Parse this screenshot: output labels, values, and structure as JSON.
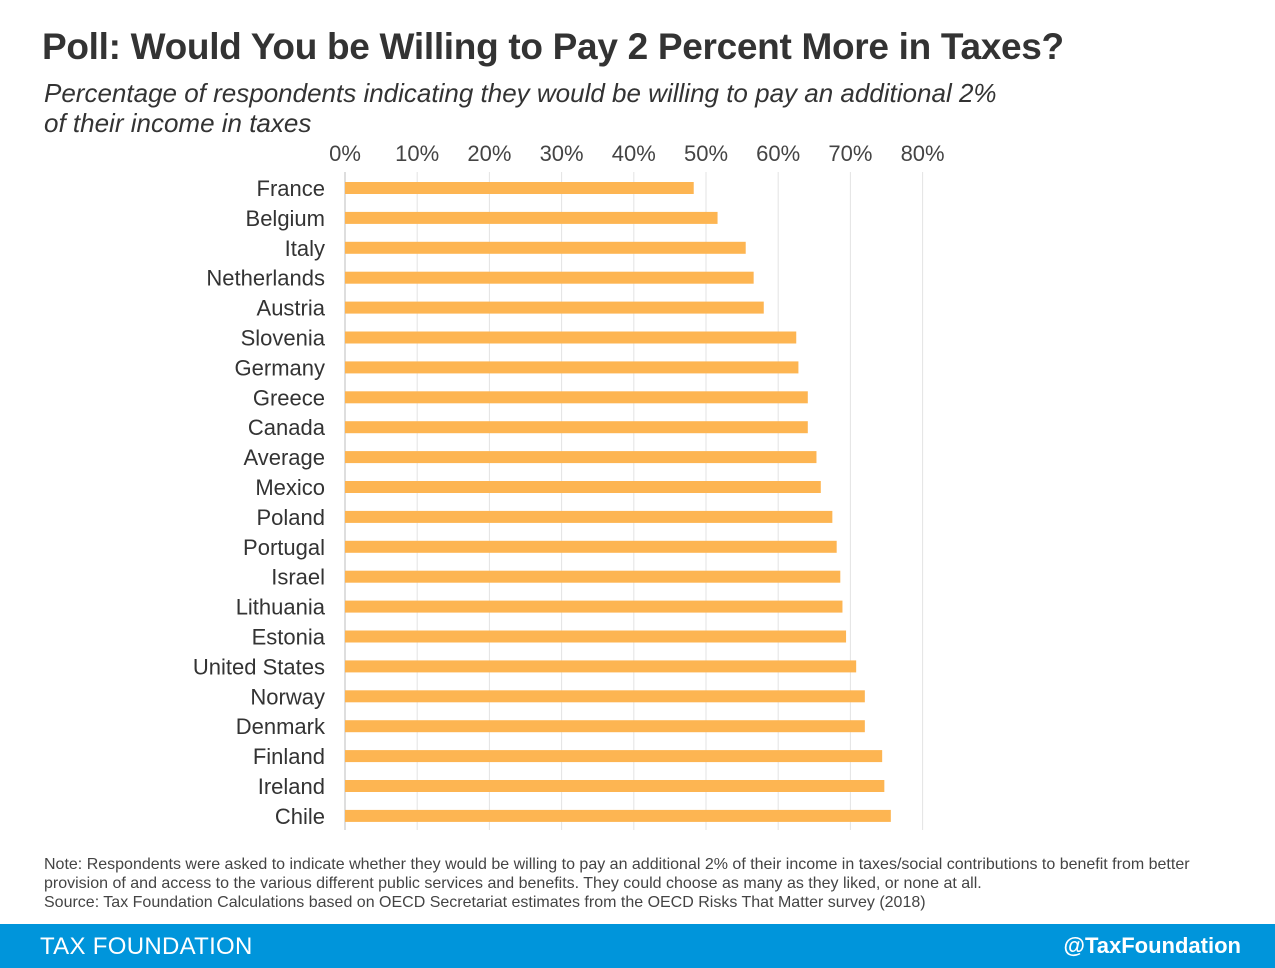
{
  "header": {
    "title": "Poll: Would You be Willing to Pay 2 Percent More in Taxes?",
    "subtitle": "Percentage of respondents indicating they would be willing to pay an additional 2% of their income in taxes"
  },
  "chart_data": {
    "type": "bar",
    "orientation": "horizontal",
    "title": "Poll: Would You be Willing to Pay 2 Percent More in Taxes?",
    "subtitle": "Percentage of respondents indicating they would be willing to pay an additional 2% of their income in taxes",
    "xlabel": "",
    "ylabel": "",
    "xlim": [
      0,
      80
    ],
    "x_ticks": [
      0,
      10,
      20,
      30,
      40,
      50,
      60,
      70,
      80
    ],
    "x_tick_labels": [
      "0%",
      "10%",
      "20%",
      "30%",
      "40%",
      "50%",
      "60%",
      "70%",
      "80%"
    ],
    "x_axis_position": "top",
    "grid": true,
    "legend": "none",
    "bar_color": "#fdb552",
    "categories": [
      "France",
      "Belgium",
      "Italy",
      "Netherlands",
      "Austria",
      "Slovenia",
      "Germany",
      "Greece",
      "Canada",
      "Average",
      "Mexico",
      "Poland",
      "Portugal",
      "Israel",
      "Lithuania",
      "Estonia",
      "United States",
      "Norway",
      "Denmark",
      "Finland",
      "Ireland",
      "Chile"
    ],
    "values": [
      48.3,
      51.6,
      55.5,
      56.6,
      58.0,
      62.5,
      62.8,
      64.1,
      64.1,
      65.3,
      65.9,
      67.5,
      68.1,
      68.6,
      68.9,
      69.4,
      70.8,
      72.0,
      72.0,
      74.4,
      74.7,
      75.6
    ]
  },
  "footer": {
    "note": "Note: Respondents were asked to indicate whether they would be willing to pay an additional 2% of their income in taxes/social contributions to benefit from better provision of and access to the various different public services and benefits. They could choose as many as they liked, or none at all.",
    "source": "Source: Tax Foundation Calculations based on OECD Secretariat estimates from the OECD Risks That Matter survey (2018)",
    "brand": "TAX FOUNDATION",
    "handle": "@TaxFoundation"
  }
}
